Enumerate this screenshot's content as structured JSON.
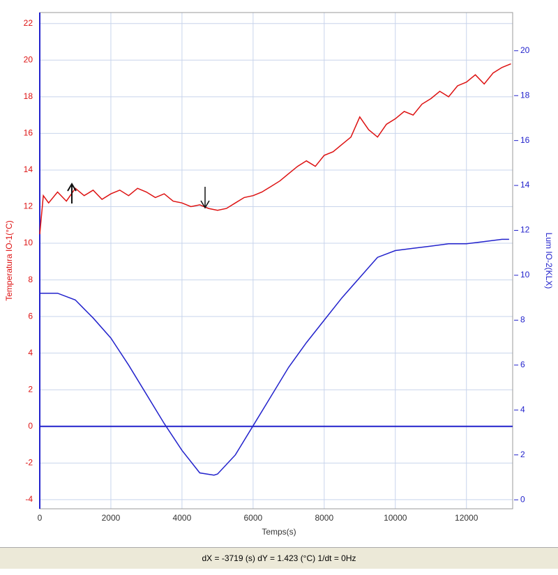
{
  "chart_data": {
    "type": "line",
    "x_label": "Temps(s)",
    "y_label": "Temperatura IO-1(°C)",
    "y2_label": "Lum IO-2(KLX)",
    "xlim": [
      0,
      13300
    ],
    "xticks": [
      0,
      2000,
      4000,
      6000,
      8000,
      10000,
      12000
    ],
    "ylim": [
      -4.5,
      22.6
    ],
    "yticks": [
      -4,
      -2,
      0,
      2,
      4,
      6,
      8,
      10,
      12,
      14,
      16,
      18,
      20,
      22
    ],
    "y2lim": [
      -0.4,
      21.7
    ],
    "y2ticks": [
      0,
      2,
      4,
      6,
      8,
      10,
      12,
      14,
      16,
      18,
      20
    ],
    "grid": true,
    "hline": 0,
    "hline_color": "#2222cc",
    "series": [
      {
        "color": "#dd1111",
        "axis": "y",
        "x": [
          0,
          100,
          250,
          500,
          750,
          1000,
          1250,
          1500,
          1750,
          2000,
          2250,
          2500,
          2750,
          3000,
          3250,
          3500,
          3750,
          4000,
          4250,
          4500,
          4750,
          5000,
          5250,
          5500,
          5750,
          6000,
          6250,
          6500,
          6750,
          7000,
          7250,
          7500,
          7750,
          8000,
          8250,
          8500,
          8750,
          9000,
          9250,
          9500,
          9750,
          10000,
          10250,
          10500,
          10750,
          11000,
          11250,
          11500,
          11750,
          12000,
          12250,
          12500,
          12750,
          13000,
          13250
        ],
        "values": [
          10.5,
          12.6,
          12.2,
          12.8,
          12.3,
          13.0,
          12.6,
          12.9,
          12.4,
          12.7,
          12.9,
          12.6,
          13.0,
          12.8,
          12.5,
          12.7,
          12.3,
          12.2,
          12.0,
          12.1,
          11.9,
          11.8,
          11.9,
          12.2,
          12.5,
          12.6,
          12.8,
          13.1,
          13.4,
          13.8,
          14.2,
          14.5,
          14.2,
          14.8,
          15.0,
          15.4,
          15.8,
          16.9,
          16.2,
          15.8,
          16.5,
          16.8,
          17.2,
          17.0,
          17.6,
          17.9,
          18.3,
          18.0,
          18.6,
          18.8,
          19.2,
          18.7,
          19.3,
          19.6,
          19.8
        ]
      },
      {
        "color": "#2222cc",
        "axis": "y2",
        "x": [
          0,
          500,
          1000,
          1250,
          1500,
          2000,
          2500,
          3000,
          3500,
          4000,
          4500,
          4900,
          5000,
          5500,
          6000,
          6500,
          7000,
          7500,
          8000,
          8500,
          9000,
          9500,
          10000,
          10500,
          11000,
          11500,
          12000,
          12500,
          13000,
          13200
        ],
        "values": [
          9.2,
          9.2,
          8.9,
          8.5,
          8.1,
          7.2,
          6.0,
          4.7,
          3.4,
          2.2,
          1.2,
          1.1,
          1.15,
          2.0,
          3.3,
          4.6,
          5.9,
          7.0,
          8.0,
          9.0,
          9.9,
          10.8,
          11.1,
          11.2,
          11.3,
          11.4,
          11.4,
          11.5,
          11.6,
          11.6
        ]
      }
    ]
  },
  "status_bar": "dX = -3719 (s) dY = 1.423 (°C) 1/dt = 0Hz"
}
